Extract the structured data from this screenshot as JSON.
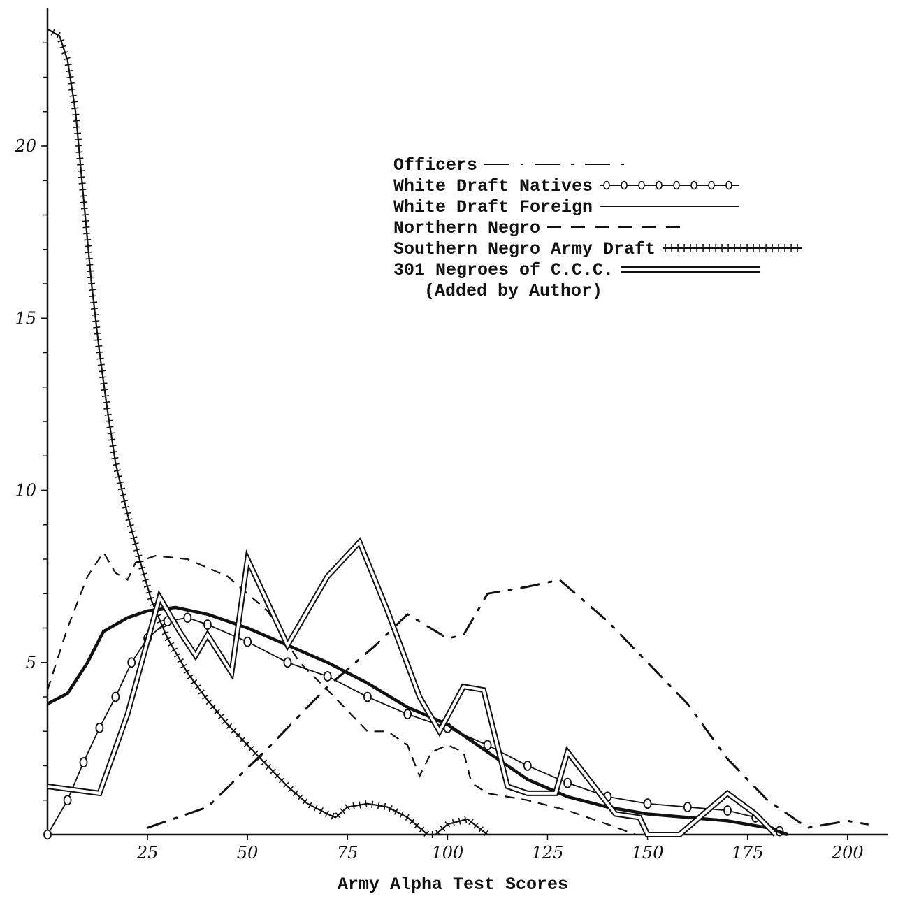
{
  "chart_data": {
    "type": "line",
    "xlabel": "Army Alpha Test Scores",
    "ylabel": "",
    "xlim": [
      0,
      210
    ],
    "ylim": [
      0,
      24
    ],
    "x_ticks": [
      25,
      50,
      75,
      100,
      125,
      150,
      175,
      200
    ],
    "x_tick_labels": [
      "25",
      "50",
      "75",
      "100",
      "125",
      "150",
      "175",
      "200"
    ],
    "y_ticks": [
      5,
      10,
      15,
      20
    ],
    "y_tick_labels": [
      "5",
      "10",
      "15",
      "20"
    ],
    "legend_position": "upper-right",
    "series": [
      {
        "name": "Officers",
        "style": "dashdot",
        "points": [
          [
            25,
            0.2
          ],
          [
            40,
            0.8
          ],
          [
            55,
            2.5
          ],
          [
            70,
            4.3
          ],
          [
            82,
            5.5
          ],
          [
            90,
            6.4
          ],
          [
            100,
            5.7
          ],
          [
            104,
            5.8
          ],
          [
            110,
            7.0
          ],
          [
            120,
            7.2
          ],
          [
            128,
            7.4
          ],
          [
            140,
            6.2
          ],
          [
            150,
            5.0
          ],
          [
            160,
            3.8
          ],
          [
            170,
            2.2
          ],
          [
            180,
            1.0
          ],
          [
            190,
            0.2
          ],
          [
            200,
            0.4
          ],
          [
            205,
            0.3
          ]
        ]
      },
      {
        "name": "White Draft Natives",
        "style": "circles",
        "points": [
          [
            0,
            0
          ],
          [
            5,
            1.0
          ],
          [
            9,
            2.1
          ],
          [
            13,
            3.1
          ],
          [
            17,
            4.0
          ],
          [
            21,
            5.0
          ],
          [
            25,
            5.7
          ],
          [
            30,
            6.2
          ],
          [
            35,
            6.3
          ],
          [
            40,
            6.1
          ],
          [
            50,
            5.6
          ],
          [
            60,
            5.0
          ],
          [
            70,
            4.6
          ],
          [
            80,
            4.0
          ],
          [
            90,
            3.5
          ],
          [
            100,
            3.1
          ],
          [
            110,
            2.6
          ],
          [
            120,
            2.0
          ],
          [
            130,
            1.5
          ],
          [
            140,
            1.1
          ],
          [
            150,
            0.9
          ],
          [
            160,
            0.8
          ],
          [
            170,
            0.7
          ],
          [
            177,
            0.5
          ],
          [
            183,
            0.1
          ]
        ]
      },
      {
        "name": "White Draft Foreign",
        "style": "solid",
        "points": [
          [
            0,
            3.8
          ],
          [
            5,
            4.1
          ],
          [
            10,
            5.0
          ],
          [
            14,
            5.9
          ],
          [
            20,
            6.3
          ],
          [
            25,
            6.5
          ],
          [
            32,
            6.6
          ],
          [
            40,
            6.4
          ],
          [
            50,
            6.0
          ],
          [
            60,
            5.5
          ],
          [
            70,
            5.0
          ],
          [
            80,
            4.4
          ],
          [
            90,
            3.7
          ],
          [
            100,
            3.2
          ],
          [
            110,
            2.4
          ],
          [
            120,
            1.6
          ],
          [
            130,
            1.1
          ],
          [
            140,
            0.8
          ],
          [
            150,
            0.6
          ],
          [
            160,
            0.5
          ],
          [
            170,
            0.4
          ],
          [
            180,
            0.2
          ],
          [
            185,
            0.0
          ]
        ]
      },
      {
        "name": "Northern Negro",
        "style": "dashed",
        "points": [
          [
            0,
            4.2
          ],
          [
            5,
            6.0
          ],
          [
            10,
            7.5
          ],
          [
            14,
            8.2
          ],
          [
            17,
            7.6
          ],
          [
            20,
            7.4
          ],
          [
            22,
            7.9
          ],
          [
            27,
            8.1
          ],
          [
            35,
            8.0
          ],
          [
            45,
            7.5
          ],
          [
            55,
            6.5
          ],
          [
            63,
            5.0
          ],
          [
            70,
            4.2
          ],
          [
            75,
            3.6
          ],
          [
            80,
            3.0
          ],
          [
            85,
            3.0
          ],
          [
            90,
            2.6
          ],
          [
            93,
            1.7
          ],
          [
            96,
            2.4
          ],
          [
            100,
            2.6
          ],
          [
            104,
            2.4
          ],
          [
            106,
            1.5
          ],
          [
            110,
            1.2
          ],
          [
            120,
            1.0
          ],
          [
            130,
            0.7
          ],
          [
            140,
            0.3
          ],
          [
            147,
            0.0
          ]
        ]
      },
      {
        "name": "Southern Negro Army Draft",
        "style": "hatched",
        "points": [
          [
            0,
            23.4
          ],
          [
            3,
            23.2
          ],
          [
            5,
            22.5
          ],
          [
            7,
            21.0
          ],
          [
            9,
            18.5
          ],
          [
            11,
            16.0
          ],
          [
            13,
            14.0
          ],
          [
            15,
            12.3
          ],
          [
            17,
            10.8
          ],
          [
            20,
            9.3
          ],
          [
            23,
            8.0
          ],
          [
            26,
            6.8
          ],
          [
            30,
            5.7
          ],
          [
            35,
            4.7
          ],
          [
            40,
            3.9
          ],
          [
            45,
            3.2
          ],
          [
            50,
            2.6
          ],
          [
            55,
            2.0
          ],
          [
            60,
            1.4
          ],
          [
            65,
            0.9
          ],
          [
            70,
            0.6
          ],
          [
            72,
            0.5
          ],
          [
            75,
            0.8
          ],
          [
            80,
            0.9
          ],
          [
            85,
            0.8
          ],
          [
            90,
            0.5
          ],
          [
            95,
            0.0
          ],
          [
            97,
            0.0
          ],
          [
            100,
            0.3
          ],
          [
            105,
            0.45
          ],
          [
            110,
            0.0
          ]
        ]
      },
      {
        "name": "301 Negroes of C.C.C.",
        "style": "double",
        "points": [
          [
            0,
            1.4
          ],
          [
            13,
            1.2
          ],
          [
            20,
            3.5
          ],
          [
            28,
            6.9
          ],
          [
            33,
            5.9
          ],
          [
            37,
            5.2
          ],
          [
            40,
            5.8
          ],
          [
            46,
            4.7
          ],
          [
            50,
            8.0
          ],
          [
            54,
            7.0
          ],
          [
            60,
            5.5
          ],
          [
            65,
            6.5
          ],
          [
            70,
            7.5
          ],
          [
            78,
            8.5
          ],
          [
            85,
            6.5
          ],
          [
            93,
            4.0
          ],
          [
            98,
            3.0
          ],
          [
            104,
            4.3
          ],
          [
            109,
            4.2
          ],
          [
            115,
            1.4
          ],
          [
            120,
            1.2
          ],
          [
            127,
            1.2
          ],
          [
            130,
            2.4
          ],
          [
            136,
            1.5
          ],
          [
            142,
            0.6
          ],
          [
            148,
            0.5
          ],
          [
            150,
            0.0
          ],
          [
            158,
            0.0
          ],
          [
            170,
            1.2
          ],
          [
            177,
            0.6
          ],
          [
            182,
            0.0
          ]
        ]
      }
    ],
    "legend_entries": [
      {
        "label": "Officers",
        "style": "dashdot"
      },
      {
        "label": "White Draft Natives",
        "style": "circles"
      },
      {
        "label": "White Draft Foreign",
        "style": "solid"
      },
      {
        "label": "Northern Negro",
        "style": "dashed"
      },
      {
        "label": "Southern Negro Army Draft",
        "style": "hatched"
      },
      {
        "label": "301 Negroes of C.C.C.",
        "style": "double"
      }
    ],
    "legend_note": "(Added by Author)"
  }
}
